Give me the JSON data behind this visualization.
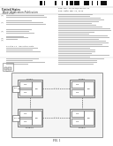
{
  "bg_color": "#ffffff",
  "barcode_color": "#111111",
  "header_bg": "#f0f0f0",
  "text_dark": "#222222",
  "text_mid": "#555555",
  "text_light": "#888888",
  "line_color": "#999999",
  "box_edge": "#666666",
  "box_face": "#eeeeee",
  "inner_face": "#ffffff",
  "diag_face": "#f5f5f5",
  "diag_edge": "#888888",
  "fig_label": "FIG. 1",
  "node_labels": [
    "MEM",
    "MEM",
    "CTRL"
  ],
  "plane_labels": [
    "PLANE 0",
    "PLANE 1",
    "PLANE N-1",
    "PLANE N"
  ],
  "host_label": "HOST"
}
